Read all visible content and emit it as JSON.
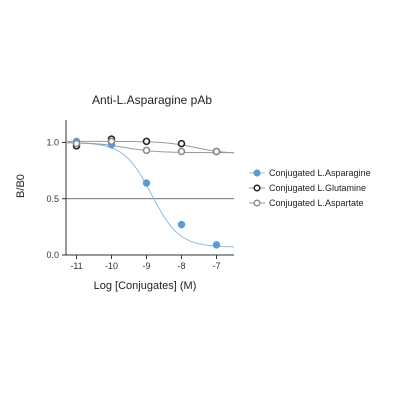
{
  "chart_data": {
    "type": "scatter",
    "title": "Anti-L.Asparagine pAb",
    "xlabel": "Log [Conjugates] (M)",
    "ylabel": "B/B0",
    "xlim": [
      -11.3,
      -6.5
    ],
    "ylim": [
      0,
      1.2
    ],
    "x_ticks": [
      -11,
      -10,
      -9,
      -8,
      -7
    ],
    "x_tick_labels": [
      "-11",
      "-10",
      "-9",
      "-8",
      "-7"
    ],
    "y_ticks": [
      0,
      0.5,
      1
    ],
    "y_tick_labels": [
      "0.0",
      "0.5",
      "1.0"
    ],
    "reference_line_y": 0.5,
    "legend_position": "right",
    "series": [
      {
        "name": "Conjugated L.Asparagine",
        "marker": "filled",
        "color": "#5b9bd5",
        "x": [
          -11,
          -10,
          -9,
          -8,
          -7
        ],
        "y": [
          1.01,
          0.98,
          0.64,
          0.27,
          0.09
        ],
        "curve": {
          "top": 1.0,
          "bottom": 0.07,
          "ec50_log": -8.85,
          "hill": 1.1
        }
      },
      {
        "name": "Conjugated L.Glutamine",
        "marker": "open",
        "color": "#222222",
        "x": [
          -11,
          -10,
          -9,
          -8,
          -7
        ],
        "y": [
          0.97,
          1.03,
          1.01,
          0.99,
          0.92
        ],
        "curve": {
          "top": 1.01,
          "bottom": 0.9,
          "ec50_log": -7.6,
          "hill": 1.0
        }
      },
      {
        "name": "Conjugated L.Aspartate",
        "marker": "open",
        "color": "#8a8a8a",
        "x": [
          -11,
          -10,
          -9,
          -8,
          -7
        ],
        "y": [
          0.99,
          1.01,
          0.93,
          0.92,
          0.92
        ],
        "curve": {
          "top": 1.0,
          "bottom": 0.91,
          "ec50_log": -9.6,
          "hill": 1.0
        }
      }
    ]
  }
}
